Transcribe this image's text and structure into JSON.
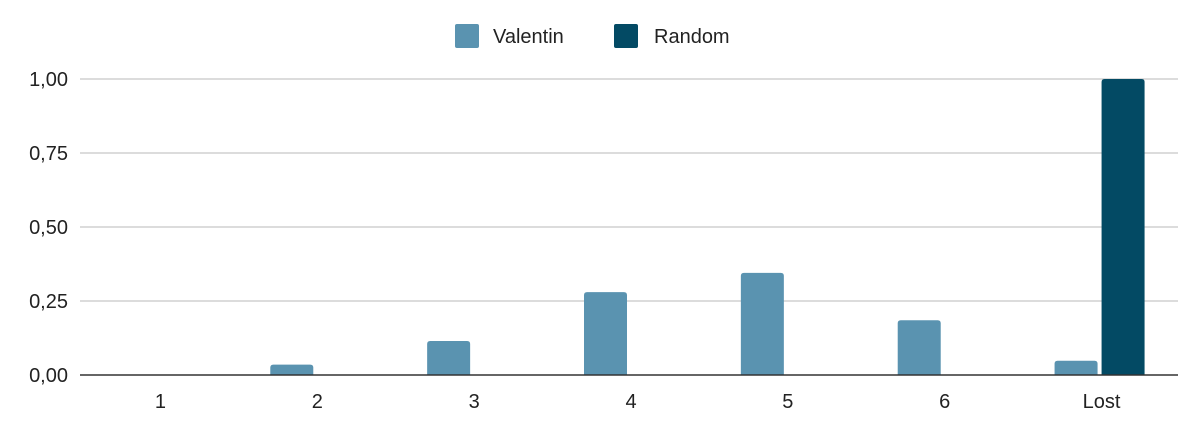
{
  "chart_data": {
    "type": "bar",
    "categories": [
      "1",
      "2",
      "3",
      "4",
      "5",
      "6",
      "Lost"
    ],
    "series": [
      {
        "name": "Valentin",
        "color": "#5a93b0",
        "values": [
          0,
          0.035,
          0.115,
          0.28,
          0.345,
          0.185,
          0.048
        ]
      },
      {
        "name": "Random",
        "color": "#034a64",
        "values": [
          0,
          0,
          0,
          0,
          0,
          0,
          1.0
        ]
      }
    ],
    "title": "",
    "xlabel": "",
    "ylabel": "",
    "ylim": [
      0,
      1
    ],
    "yticks": [
      "0,00",
      "0,25",
      "0,50",
      "0,75",
      "1,00"
    ],
    "grid": true,
    "legend_position": "top-center",
    "gridline_color": "#c8c8c8",
    "axis_color": "#333333"
  }
}
